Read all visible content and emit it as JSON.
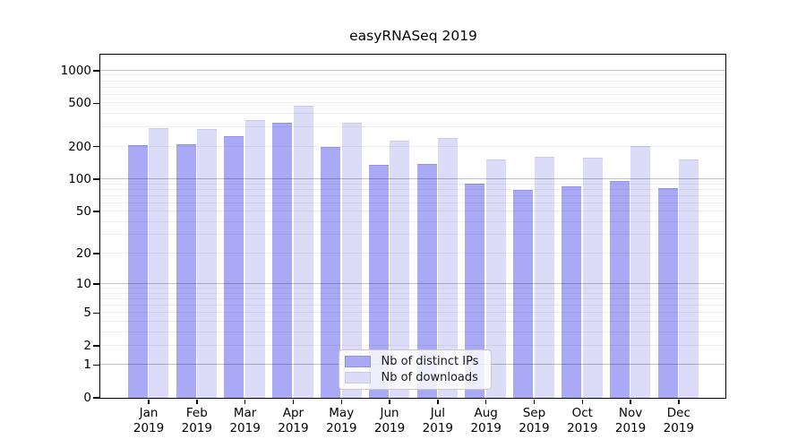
{
  "title": "easyRNASeq 2019",
  "chart_data": {
    "type": "bar",
    "title": "easyRNASeq 2019",
    "categories": [
      "Jan 2019",
      "Feb 2019",
      "Mar 2019",
      "Apr 2019",
      "May 2019",
      "Jun 2019",
      "Jul 2019",
      "Aug 2019",
      "Sep 2019",
      "Oct 2019",
      "Nov 2019",
      "Dec 2019"
    ],
    "series": [
      {
        "name": "Nb of distinct IPs",
        "color": "#a9a9f5",
        "border_color": "#9191e6",
        "values": [
          205,
          210,
          247,
          331,
          196,
          134,
          138,
          90,
          79,
          85,
          96,
          82
        ]
      },
      {
        "name": "Nb of downloads",
        "color": "#dcdcf8",
        "border_color": "#c9c9f0",
        "values": [
          292,
          289,
          345,
          470,
          326,
          223,
          238,
          150,
          161,
          157,
          200,
          150
        ]
      }
    ],
    "xlabel": "",
    "ylabel": "",
    "scale": "log1p",
    "ylim": [
      0,
      1400
    ],
    "yticks": [
      0,
      1,
      2,
      5,
      10,
      20,
      50,
      100,
      200,
      500,
      1000
    ],
    "major_gridlines": [
      1,
      10,
      100,
      1000
    ],
    "minor_gridlines": [
      2,
      3,
      4,
      5,
      6,
      7,
      8,
      9,
      20,
      30,
      40,
      50,
      60,
      70,
      80,
      90,
      200,
      300,
      400,
      500,
      600,
      700,
      800,
      900
    ],
    "grid": true,
    "legend_position": "inside-bottom-center",
    "axis_color": "#000000",
    "background_color": "#ffffff"
  }
}
